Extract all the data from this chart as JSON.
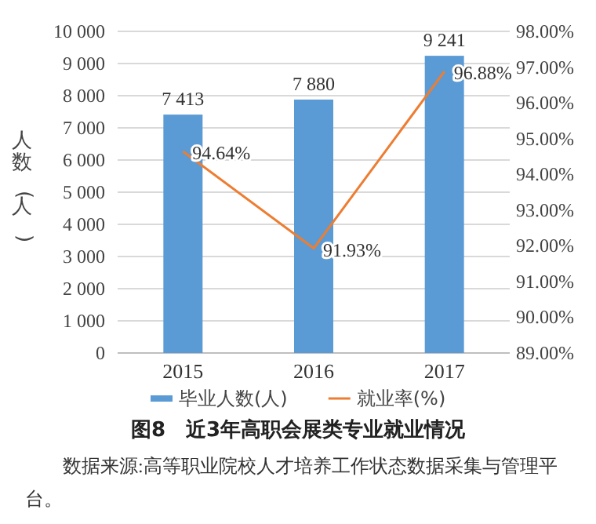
{
  "chart_data": {
    "type": "bar",
    "title": "图8　近3年高职会展类专业就业情况",
    "ylabel": "人数(人)",
    "categories": [
      "2015",
      "2016",
      "2017"
    ],
    "series": [
      {
        "name": "毕业人数(人)",
        "color": "#5b9bd5",
        "values": [
          7413,
          7880,
          9241
        ],
        "value_labels": [
          "7 413",
          "7 880",
          "9 241"
        ]
      },
      {
        "name": "就业率(%)",
        "type": "line",
        "axis": "y2",
        "color": "#ed7d31",
        "values": [
          94.64,
          91.93,
          96.88
        ],
        "value_labels": [
          "94.64%",
          "91.93%",
          "96.88%"
        ]
      }
    ],
    "ylim": [
      0,
      10000
    ],
    "yticks": [
      0,
      {
        "value": 1000,
        "label": "1 000"
      },
      {
        "value": 2000,
        "label": "2 000"
      },
      {
        "value": 3000,
        "label": "3 000"
      },
      {
        "value": 4000,
        "label": "4 000"
      },
      {
        "value": 5000,
        "label": "5 000"
      },
      {
        "value": 6000,
        "label": "6 000"
      },
      {
        "value": 7000,
        "label": "7 000"
      },
      {
        "value": 8000,
        "label": "8 000"
      },
      {
        "value": 9000,
        "label": "9 000"
      },
      {
        "value": 10000,
        "label": "10 000"
      }
    ],
    "y2lim": [
      89,
      98
    ],
    "y2ticks": [
      {
        "value": 89,
        "label": "89.00%"
      },
      {
        "value": 90,
        "label": "90.00%"
      },
      {
        "value": 91,
        "label": "91.00%"
      },
      {
        "value": 92,
        "label": "92.00%"
      },
      {
        "value": 93,
        "label": "93.00%"
      },
      {
        "value": 94,
        "label": "94.00%"
      },
      {
        "value": 95,
        "label": "95.00%"
      },
      {
        "value": 96,
        "label": "96.00%"
      },
      {
        "value": 97,
        "label": "97.00%"
      },
      {
        "value": 98,
        "label": "98.00%"
      }
    ],
    "grid": "y",
    "legend": "bottom",
    "annotations": [
      "数据来源:高等职业院校人才培养工作状态数据采集与管理平台。"
    ]
  }
}
